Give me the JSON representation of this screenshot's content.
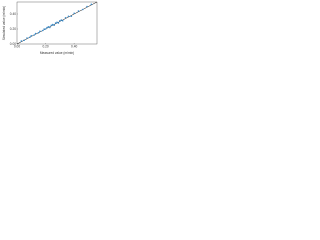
{
  "chart_data": {
    "type": "scatter",
    "xlabel": "Measured value (m/min)",
    "ylabel": "Simulated value (m/min)",
    "x": [
      0.03,
      0.05,
      0.07,
      0.09,
      0.1,
      0.12,
      0.13,
      0.15,
      0.16,
      0.18,
      0.19,
      0.2,
      0.21,
      0.22,
      0.23,
      0.24,
      0.25,
      0.26,
      0.27,
      0.28,
      0.29,
      0.3,
      0.31,
      0.32,
      0.34,
      0.36,
      0.38,
      0.4,
      0.43,
      0.46,
      0.49,
      0.52
    ],
    "series": [
      {
        "name": "Simulated",
        "color": "#3a8fd0",
        "values": [
          0.04,
          0.05,
          0.08,
          0.09,
          0.11,
          0.12,
          0.14,
          0.15,
          0.17,
          0.18,
          0.2,
          0.2,
          0.22,
          0.23,
          0.22,
          0.25,
          0.26,
          0.25,
          0.28,
          0.29,
          0.28,
          0.31,
          0.32,
          0.31,
          0.35,
          0.37,
          0.37,
          0.41,
          0.44,
          0.46,
          0.5,
          0.53
        ]
      }
    ],
    "xlim": [
      0,
      0.56
    ],
    "ylim": [
      0,
      0.56
    ],
    "xticks": [
      {
        "value": 0,
        "label": "0.00"
      },
      {
        "value": 0.2,
        "label": "0.20"
      },
      {
        "value": 0.4,
        "label": "0.40"
      }
    ],
    "yticks": [
      {
        "value": 0,
        "label": "0.00"
      },
      {
        "value": 0.2,
        "label": "0.20"
      },
      {
        "value": 0.4,
        "label": "0.40"
      }
    ],
    "grid": false
  }
}
